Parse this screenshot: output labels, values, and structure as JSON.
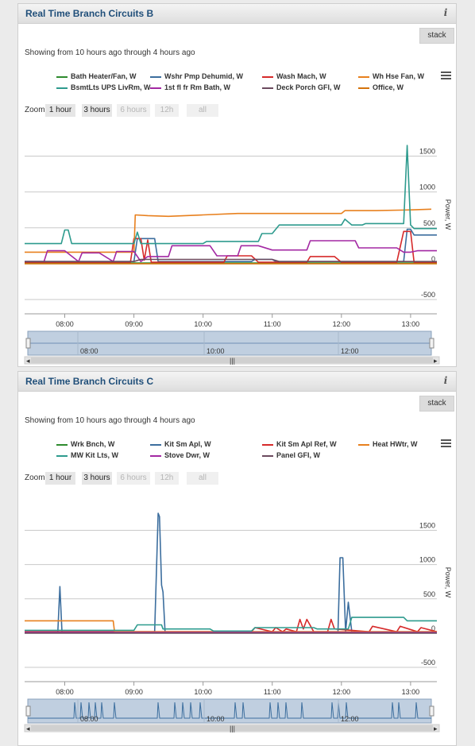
{
  "panels": [
    {
      "title": "Real Time Branch Circuits B",
      "stack_label": "stack",
      "showing": "Showing from 10 hours ago through 4 hours ago",
      "zoom": {
        "label": "Zoom",
        "buttons": [
          {
            "label": "1 hour",
            "enabled": true
          },
          {
            "label": "3 hours",
            "enabled": true
          },
          {
            "label": "6 hours",
            "enabled": false
          },
          {
            "label": "12h",
            "enabled": false
          },
          {
            "label": "all",
            "enabled": false
          }
        ]
      },
      "navigator_ticks": [
        "08:00",
        "10:00",
        "12:00"
      ],
      "chart_data": {
        "type": "line",
        "title": "",
        "xlabel": "",
        "ylabel": "Power, W",
        "ylim": [
          -500,
          1650
        ],
        "yticks": [
          -500,
          0,
          500,
          1000,
          1500
        ],
        "xlim": [
          7.42,
          13.38
        ],
        "xticks": [
          "08:00",
          "09:00",
          "10:00",
          "11:00",
          "12:00",
          "13:00"
        ],
        "grid": true,
        "legend": "top",
        "series": [
          {
            "name": "Bath Heater/Fan, W",
            "color": "#2e8b2e",
            "x": [
              7.42,
              13.38
            ],
            "y": [
              10,
              10
            ]
          },
          {
            "name": "Wshr Pmp Dehumid, W",
            "color": "#3c6e9e",
            "x": [
              7.42,
              8.5,
              8.6,
              9.0,
              9.05,
              9.3,
              9.35,
              10.7,
              10.75,
              11.0,
              11.05,
              12.9,
              12.95,
              13.0,
              13.05,
              13.38
            ],
            "y": [
              30,
              30,
              30,
              30,
              350,
              350,
              30,
              30,
              60,
              60,
              30,
              30,
              480,
              480,
              400,
              400
            ]
          },
          {
            "name": "Wash Mach, W",
            "color": "#d62a2a",
            "x": [
              7.42,
              8.95,
              9.0,
              9.1,
              9.15,
              9.2,
              9.25,
              10.3,
              10.35,
              10.7,
              10.8,
              11.5,
              11.55,
              11.9,
              12.0,
              12.8,
              12.9,
              13.0,
              13.05,
              13.38
            ],
            "y": [
              20,
              20,
              350,
              350,
              50,
              330,
              20,
              20,
              110,
              110,
              20,
              20,
              100,
              100,
              20,
              20,
              450,
              450,
              20,
              20
            ]
          },
          {
            "name": "Wh Hse Fan, W",
            "color": "#e8801e",
            "x": [
              7.42,
              9.0,
              9.02,
              9.2,
              9.5,
              10.0,
              10.5,
              11.0,
              11.5,
              12.0,
              12.05,
              12.5,
              13.0,
              13.3
            ],
            "y": [
              160,
              160,
              680,
              670,
              660,
              680,
              700,
              700,
              700,
              700,
              740,
              740,
              750,
              760
            ]
          },
          {
            "name": "BsmtLts UPS LivRm, W",
            "color": "#2e9b8e",
            "x": [
              7.42,
              7.95,
              8.0,
              8.05,
              8.1,
              9.0,
              9.05,
              9.1,
              10.0,
              10.05,
              10.8,
              10.85,
              11.0,
              11.1,
              12.0,
              12.05,
              12.15,
              12.3,
              12.35,
              12.9,
              12.95,
              13.0,
              13.05,
              13.38
            ],
            "y": [
              280,
              280,
              470,
              470,
              280,
              280,
              440,
              280,
              280,
              310,
              310,
              420,
              420,
              540,
              540,
              620,
              540,
              540,
              560,
              560,
              1650,
              540,
              490,
              490
            ]
          },
          {
            "name": "1st fl fr Rm Bath, W",
            "color": "#a329a3",
            "x": [
              7.42,
              7.7,
              7.75,
              8.0,
              8.2,
              8.25,
              8.5,
              8.7,
              8.75,
              9.0,
              9.1,
              9.2,
              9.5,
              9.55,
              9.8,
              10.1,
              10.2,
              10.5,
              10.55,
              10.8,
              11.0,
              11.1,
              11.5,
              11.55,
              12.0,
              12.2,
              12.25,
              12.8,
              12.9,
              13.0,
              13.1,
              13.38
            ],
            "y": [
              30,
              30,
              180,
              180,
              30,
              150,
              150,
              30,
              170,
              170,
              30,
              100,
              100,
              250,
              250,
              250,
              110,
              110,
              250,
              250,
              190,
              190,
              190,
              320,
              320,
              320,
              220,
              220,
              160,
              160,
              180,
              180
            ]
          },
          {
            "name": "Deck Porch GFI, W",
            "color": "#6b4a5e",
            "x": [
              7.42,
              9.0,
              9.1,
              11.0,
              11.1,
              13.38
            ],
            "y": [
              30,
              30,
              60,
              60,
              30,
              30
            ]
          },
          {
            "name": "Office, W",
            "color": "#d4730b",
            "x": [
              7.42,
              13.38
            ],
            "y": [
              0,
              0
            ]
          }
        ]
      }
    },
    {
      "title": "Real Time Branch Circuits C",
      "stack_label": "stack",
      "showing": "Showing from 10 hours ago through 4 hours ago",
      "zoom": {
        "label": "Zoom",
        "buttons": [
          {
            "label": "1 hour",
            "enabled": true
          },
          {
            "label": "3 hours",
            "enabled": true
          },
          {
            "label": "6 hours",
            "enabled": false
          },
          {
            "label": "12h",
            "enabled": false
          },
          {
            "label": "all",
            "enabled": false
          }
        ]
      },
      "navigator_ticks": [
        "08:00",
        "10:00",
        "12:00"
      ],
      "chart_data": {
        "type": "line",
        "title": "",
        "xlabel": "",
        "ylabel": "Power, W",
        "ylim": [
          -500,
          1750
        ],
        "yticks": [
          -500,
          0,
          500,
          1000,
          1500
        ],
        "xlim": [
          7.42,
          13.38
        ],
        "xticks": [
          "08:00",
          "09:00",
          "10:00",
          "11:00",
          "12:00",
          "13:00"
        ],
        "grid": true,
        "legend": "top",
        "series": [
          {
            "name": "Wrk Bnch, W",
            "color": "#2e8b2e",
            "x": [
              7.42,
              13.38
            ],
            "y": [
              5,
              5
            ]
          },
          {
            "name": "Kit Sm Apl, W",
            "color": "#3c6e9e",
            "x": [
              7.42,
              7.9,
              7.93,
              7.96,
              8.0,
              9.3,
              9.35,
              9.37,
              9.4,
              9.42,
              9.45,
              9.5,
              9.55,
              11.95,
              11.98,
              12.02,
              12.06,
              12.1,
              12.15,
              12.2,
              13.38
            ],
            "y": [
              20,
              20,
              680,
              20,
              20,
              20,
              1750,
              1700,
              700,
              600,
              20,
              20,
              20,
              20,
              1100,
              1100,
              20,
              450,
              20,
              20,
              20
            ]
          },
          {
            "name": "Kit Sm Apl Ref, W",
            "color": "#d62a2a",
            "x": [
              7.42,
              10.7,
              10.75,
              11.0,
              11.05,
              11.15,
              11.2,
              11.35,
              11.4,
              11.45,
              11.5,
              11.6,
              11.65,
              11.8,
              11.85,
              11.9,
              12.4,
              12.45,
              12.8,
              12.85,
              13.1,
              13.15,
              13.38
            ],
            "y": [
              20,
              20,
              80,
              20,
              80,
              20,
              60,
              20,
              200,
              60,
              200,
              20,
              20,
              20,
              200,
              60,
              20,
              100,
              20,
              100,
              20,
              80,
              20
            ]
          },
          {
            "name": "Heat HWtr, W",
            "color": "#e8801e",
            "x": [
              7.42,
              8.7,
              8.72,
              13.38
            ],
            "y": [
              180,
              180,
              20,
              20
            ]
          },
          {
            "name": "MW Kit Lts, W",
            "color": "#2e9b8e",
            "x": [
              7.42,
              9.0,
              9.05,
              9.4,
              9.42,
              10.1,
              10.15,
              10.7,
              10.75,
              11.6,
              11.65,
              12.1,
              12.15,
              12.9,
              12.95,
              13.38
            ],
            "y": [
              40,
              40,
              120,
              120,
              60,
              60,
              30,
              30,
              80,
              80,
              60,
              60,
              230,
              230,
              180,
              180
            ]
          },
          {
            "name": "Stove Dwr, W",
            "color": "#a329a3",
            "x": [
              7.42,
              13.38
            ],
            "y": [
              10,
              10
            ]
          },
          {
            "name": "Panel GFI, W",
            "color": "#6b4a5e",
            "x": [
              7.42,
              13.38
            ],
            "y": [
              0,
              0
            ]
          }
        ]
      }
    }
  ]
}
